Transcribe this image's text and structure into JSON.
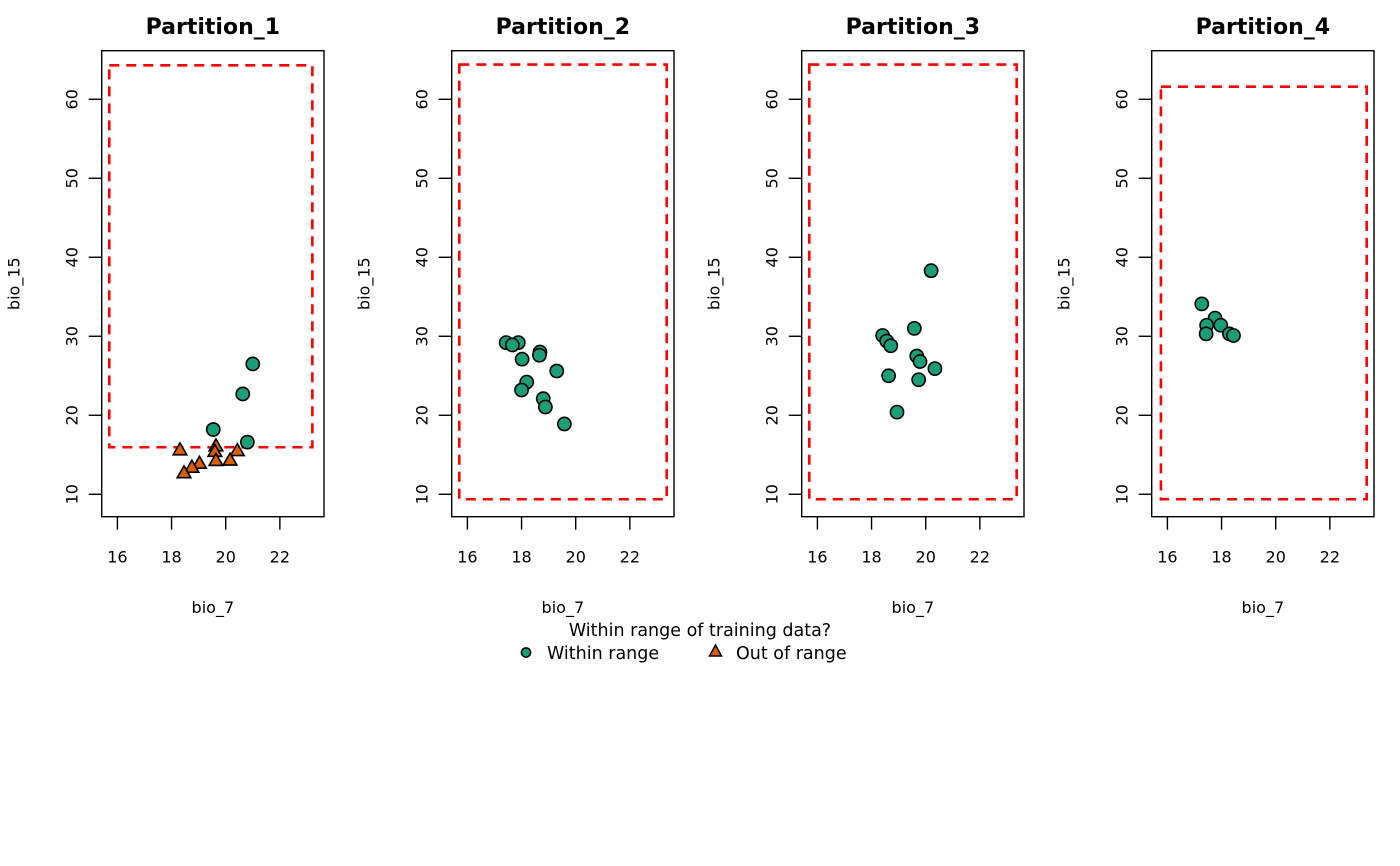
{
  "chart_data": {
    "type": "scatter",
    "legend": {
      "title": "Within range of training data?",
      "placement": "bottom-center",
      "entries": [
        {
          "label": "Within range",
          "marker": "circle",
          "color": "#1B9E77"
        },
        {
          "label": "Out of range",
          "marker": "triangle",
          "color": "#D95F02"
        }
      ]
    },
    "colors": {
      "within": "#1B9E77",
      "out": "#D95F02",
      "range_box": "#FF0000"
    },
    "panels": [
      {
        "title": "Partition_1",
        "xlabel": "bio_7",
        "ylabel": "bio_15",
        "xlim": [
          15.42,
          23.63
        ],
        "ylim": [
          7.16,
          66.15
        ],
        "xticks": [
          16,
          18,
          20,
          22
        ],
        "yticks": [
          10,
          20,
          30,
          40,
          50,
          60
        ],
        "range_box": {
          "x": [
            15.7,
            23.2
          ],
          "y": [
            15.95,
            64.3
          ]
        },
        "points": [
          {
            "x": 21.0,
            "y": 26.5,
            "group": "within"
          },
          {
            "x": 20.63,
            "y": 22.7,
            "group": "within"
          },
          {
            "x": 19.54,
            "y": 18.2,
            "group": "within"
          },
          {
            "x": 20.8,
            "y": 16.6,
            "group": "within"
          },
          {
            "x": 18.31,
            "y": 15.6,
            "group": "out"
          },
          {
            "x": 19.64,
            "y": 16.1,
            "group": "out"
          },
          {
            "x": 19.6,
            "y": 15.4,
            "group": "out"
          },
          {
            "x": 19.64,
            "y": 14.25,
            "group": "out"
          },
          {
            "x": 20.43,
            "y": 15.5,
            "group": "out"
          },
          {
            "x": 20.16,
            "y": 14.3,
            "group": "out"
          },
          {
            "x": 19.03,
            "y": 13.9,
            "group": "out"
          },
          {
            "x": 18.75,
            "y": 13.4,
            "group": "out"
          },
          {
            "x": 18.46,
            "y": 12.7,
            "group": "out"
          }
        ]
      },
      {
        "title": "Partition_2",
        "xlabel": "bio_7",
        "ylabel": "bio_15",
        "xlim": [
          15.42,
          23.63
        ],
        "ylim": [
          7.16,
          66.15
        ],
        "xticks": [
          16,
          18,
          20,
          22
        ],
        "yticks": [
          10,
          20,
          30,
          40,
          50,
          60
        ],
        "range_box": {
          "x": [
            15.7,
            23.36
          ],
          "y": [
            9.37,
            64.4
          ]
        },
        "points": [
          {
            "x": 17.43,
            "y": 29.2,
            "group": "within"
          },
          {
            "x": 17.88,
            "y": 29.2,
            "group": "within"
          },
          {
            "x": 17.66,
            "y": 28.9,
            "group": "within"
          },
          {
            "x": 18.68,
            "y": 28.0,
            "group": "within"
          },
          {
            "x": 18.66,
            "y": 27.6,
            "group": "within"
          },
          {
            "x": 18.02,
            "y": 27.1,
            "group": "within"
          },
          {
            "x": 19.3,
            "y": 25.6,
            "group": "within"
          },
          {
            "x": 18.19,
            "y": 24.2,
            "group": "within"
          },
          {
            "x": 18.0,
            "y": 23.2,
            "group": "within"
          },
          {
            "x": 18.8,
            "y": 22.1,
            "group": "within"
          },
          {
            "x": 18.88,
            "y": 21.05,
            "group": "within"
          },
          {
            "x": 19.58,
            "y": 18.9,
            "group": "within"
          }
        ]
      },
      {
        "title": "Partition_3",
        "xlabel": "bio_7",
        "ylabel": "bio_15",
        "xlim": [
          15.42,
          23.63
        ],
        "ylim": [
          7.16,
          66.15
        ],
        "xticks": [
          16,
          18,
          20,
          22
        ],
        "yticks": [
          10,
          20,
          30,
          40,
          50,
          60
        ],
        "range_box": {
          "x": [
            15.7,
            23.36
          ],
          "y": [
            9.37,
            64.4
          ]
        },
        "points": [
          {
            "x": 20.2,
            "y": 38.3,
            "group": "within"
          },
          {
            "x": 19.58,
            "y": 31.0,
            "group": "within"
          },
          {
            "x": 18.41,
            "y": 30.1,
            "group": "within"
          },
          {
            "x": 18.56,
            "y": 29.4,
            "group": "within"
          },
          {
            "x": 18.71,
            "y": 28.8,
            "group": "within"
          },
          {
            "x": 19.67,
            "y": 27.5,
            "group": "within"
          },
          {
            "x": 19.79,
            "y": 26.8,
            "group": "within"
          },
          {
            "x": 20.34,
            "y": 25.9,
            "group": "within"
          },
          {
            "x": 18.63,
            "y": 25.0,
            "group": "within"
          },
          {
            "x": 19.74,
            "y": 24.5,
            "group": "within"
          },
          {
            "x": 18.94,
            "y": 20.4,
            "group": "within"
          }
        ]
      },
      {
        "title": "Partition_4",
        "xlabel": "bio_7",
        "ylabel": "bio_15",
        "xlim": [
          15.42,
          23.63
        ],
        "ylim": [
          7.16,
          66.15
        ],
        "xticks": [
          16,
          18,
          20,
          22
        ],
        "yticks": [
          10,
          20,
          30,
          40,
          50,
          60
        ],
        "range_box": {
          "x": [
            15.76,
            23.36
          ],
          "y": [
            9.37,
            61.6
          ]
        },
        "points": [
          {
            "x": 17.27,
            "y": 34.1,
            "group": "within"
          },
          {
            "x": 17.76,
            "y": 32.3,
            "group": "within"
          },
          {
            "x": 17.45,
            "y": 31.4,
            "group": "within"
          },
          {
            "x": 17.97,
            "y": 31.4,
            "group": "within"
          },
          {
            "x": 17.43,
            "y": 30.3,
            "group": "within"
          },
          {
            "x": 18.29,
            "y": 30.3,
            "group": "within"
          },
          {
            "x": 18.44,
            "y": 30.1,
            "group": "within"
          }
        ]
      }
    ]
  }
}
